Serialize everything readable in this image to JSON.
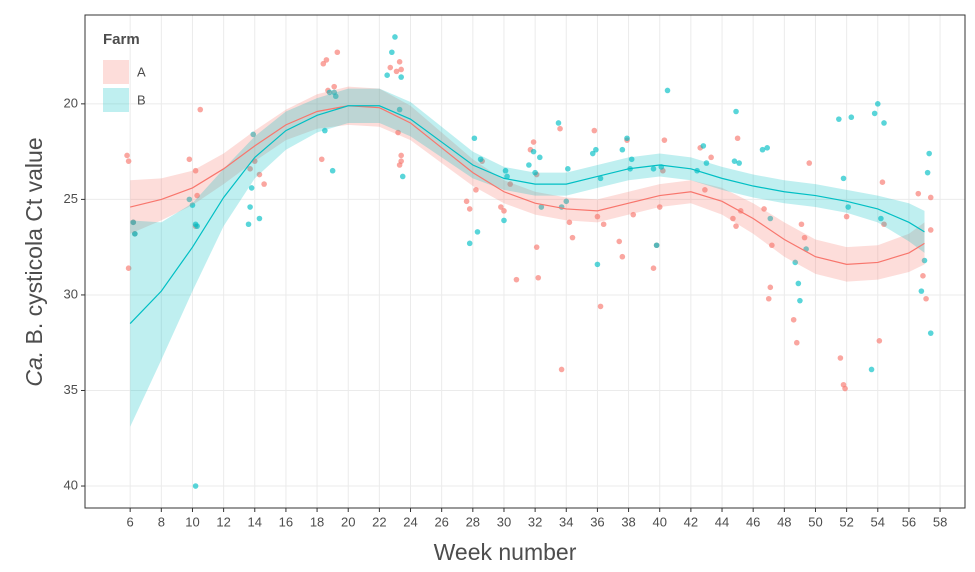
{
  "chart_data": {
    "type": "scatter",
    "xlabel": "Week number",
    "ylabel_italic": "Ca.",
    "ylabel": "B. cysticola Ct value",
    "legend_title": "Farm",
    "legend_position": "top-left",
    "grid": true,
    "y_reversed": true,
    "xlim": [
      3.1,
      59.6
    ],
    "ylim": [
      15.35,
      41.15
    ],
    "xticks": [
      6,
      8,
      10,
      12,
      14,
      16,
      18,
      20,
      22,
      24,
      26,
      28,
      30,
      32,
      34,
      36,
      38,
      40,
      42,
      44,
      46,
      48,
      50,
      52,
      54,
      56,
      58
    ],
    "yticks": [
      20,
      25,
      30,
      35,
      40
    ],
    "fit_x": [
      6,
      8,
      10,
      12,
      14,
      16,
      18,
      20,
      22,
      24,
      26,
      28,
      30,
      32,
      34,
      36,
      38,
      40,
      42,
      44,
      46,
      48,
      50,
      52,
      54,
      56,
      57
    ],
    "series": [
      {
        "name": "A",
        "color": "#f8766d",
        "x": [
          5.8,
          5.9,
          5.9,
          6.2,
          6.3,
          9.8,
          10.2,
          10.3,
          10.5,
          10.2,
          13.7,
          14,
          14.3,
          14.6,
          18.3,
          18.4,
          18.6,
          18.7,
          19.1,
          19.3,
          22.7,
          23.1,
          23.3,
          23.4,
          23.2,
          23.4,
          23.4,
          23.3,
          27.6,
          27.8,
          28.2,
          28.6,
          29.8,
          30.0,
          30.4,
          30.8,
          31.7,
          31.9,
          32.1,
          32.1,
          32.2,
          33.6,
          33.7,
          34.2,
          34.4,
          35.8,
          36.0,
          36.2,
          36.4,
          37.4,
          37.6,
          37.9,
          38.3,
          39.6,
          39.8,
          40.0,
          40.2,
          40.3,
          42.6,
          42.9,
          43.3,
          44.7,
          44.9,
          45.0,
          45.2,
          46.7,
          47.0,
          47.1,
          47.2,
          48.6,
          48.8,
          49.1,
          49.3,
          49.6,
          51.6,
          51.8,
          51.9,
          52.0,
          54.1,
          54.3,
          54.4,
          56.6,
          56.9,
          57.1,
          57.4,
          57.4
        ],
        "values": [
          22.7,
          23.0,
          28.6,
          26.2,
          26.8,
          22.9,
          23.5,
          24.8,
          20.3,
          26.4,
          23.4,
          23,
          23.7,
          24.2,
          22.9,
          17.9,
          17.7,
          19.3,
          19.1,
          17.3,
          18.1,
          18.3,
          17.8,
          18.2,
          21.5,
          22.7,
          23.0,
          23.2,
          25.1,
          25.5,
          24.5,
          23.0,
          25.4,
          25.6,
          24.2,
          29.2,
          22.4,
          22.0,
          23.7,
          27.5,
          29.1,
          21.3,
          33.9,
          26.2,
          27.0,
          21.4,
          25.9,
          30.6,
          26.3,
          27.2,
          28.0,
          21.9,
          25.8,
          28.6,
          27.4,
          25.4,
          23.5,
          21.9,
          22.3,
          24.5,
          22.8,
          26.0,
          26.4,
          21.8,
          25.6,
          25.5,
          30.2,
          29.6,
          27.4,
          31.3,
          32.5,
          26.3,
          27.0,
          23.1,
          33.3,
          34.7,
          34.9,
          25.9,
          32.4,
          24.1,
          26.3,
          24.7,
          29.0,
          30.2,
          24.9,
          26.6
        ],
        "fit": [
          25.4,
          25.0,
          24.4,
          23.4,
          22.2,
          21.1,
          20.4,
          20.1,
          20.2,
          21.0,
          22.3,
          23.6,
          24.6,
          25.2,
          25.5,
          25.6,
          25.2,
          24.8,
          24.6,
          25.1,
          26.0,
          27.1,
          28.0,
          28.4,
          28.3,
          27.8,
          27.3
        ],
        "fit_lower": [
          24.0,
          23.9,
          23.5,
          22.6,
          21.4,
          20.3,
          19.5,
          19.1,
          19.2,
          20.1,
          21.5,
          22.9,
          24.0,
          24.6,
          24.9,
          25.0,
          24.6,
          24.2,
          24.0,
          24.4,
          25.2,
          26.2,
          27.1,
          27.5,
          27.4,
          26.8,
          26.2
        ],
        "fit_upper": [
          26.8,
          26.1,
          25.3,
          24.2,
          23.0,
          21.9,
          21.3,
          21.1,
          21.2,
          21.9,
          23.1,
          24.3,
          25.2,
          25.8,
          26.1,
          26.2,
          25.8,
          25.4,
          25.2,
          25.8,
          26.8,
          28.0,
          28.9,
          29.3,
          29.2,
          28.8,
          28.4
        ]
      },
      {
        "name": "B",
        "color": "#00bfc4",
        "x": [
          6.2,
          6.3,
          9.8,
          10.0,
          10.2,
          10.3,
          10.2,
          13.6,
          13.7,
          13.8,
          13.9,
          14.3,
          18.5,
          18.8,
          19.0,
          19.1,
          19.2,
          22.5,
          22.8,
          23.0,
          23.3,
          23.5,
          23.4,
          27.8,
          28.1,
          28.3,
          28.5,
          30.0,
          30.1,
          30.2,
          31.6,
          31.9,
          32.0,
          32.3,
          32.4,
          33.5,
          33.7,
          34.0,
          34.1,
          35.7,
          35.9,
          36.0,
          36.2,
          37.6,
          37.9,
          38.1,
          38.2,
          39.6,
          39.8,
          40.1,
          40.5,
          42.4,
          42.8,
          43.0,
          44.8,
          44.9,
          45.1,
          46.6,
          46.9,
          47.1,
          48.7,
          48.9,
          49.0,
          49.4,
          51.5,
          51.8,
          52.1,
          52.3,
          53.6,
          53.8,
          54.0,
          54.4,
          54.2,
          56.8,
          57.0,
          57.2,
          57.3,
          57.4
        ],
        "values": [
          26.2,
          26.8,
          25.0,
          25.3,
          26.3,
          26.4,
          40.0,
          26.3,
          25.4,
          24.4,
          21.6,
          26.0,
          21.4,
          19.4,
          23.5,
          19.4,
          19.6,
          18.5,
          17.3,
          16.5,
          20.3,
          23.8,
          18.6,
          27.3,
          21.8,
          26.7,
          22.9,
          26.1,
          23.5,
          23.8,
          23.2,
          22.5,
          23.6,
          22.8,
          25.4,
          21.0,
          25.4,
          25.1,
          23.4,
          22.6,
          22.4,
          28.4,
          23.9,
          22.4,
          21.8,
          23.4,
          22.9,
          23.4,
          27.4,
          23.3,
          19.3,
          23.5,
          22.2,
          23.1,
          23.0,
          20.4,
          23.1,
          22.4,
          22.3,
          26.0,
          28.3,
          29.4,
          30.3,
          27.6,
          20.8,
          23.9,
          25.4,
          20.7,
          33.9,
          20.5,
          20.0,
          21.0,
          26.0,
          29.8,
          28.2,
          23.6,
          22.6,
          32.0
        ],
        "fit": [
          31.5,
          29.8,
          27.5,
          24.9,
          22.8,
          21.4,
          20.6,
          20.1,
          20.1,
          20.8,
          22.0,
          23.2,
          23.9,
          24.2,
          24.2,
          23.8,
          23.4,
          23.2,
          23.4,
          23.9,
          24.3,
          24.6,
          24.8,
          25.1,
          25.5,
          26.2,
          26.7
        ],
        "fit_lower": [
          26.1,
          26.2,
          25.2,
          23.4,
          21.7,
          20.4,
          19.7,
          19.2,
          19.2,
          19.9,
          21.2,
          22.5,
          23.3,
          23.6,
          23.6,
          23.2,
          22.8,
          22.6,
          22.8,
          23.3,
          23.7,
          24.0,
          24.2,
          24.5,
          24.8,
          25.2,
          25.6
        ],
        "fit_upper": [
          36.9,
          33.4,
          29.8,
          26.4,
          23.9,
          22.4,
          21.5,
          21.0,
          21.0,
          21.7,
          22.8,
          23.9,
          24.5,
          24.8,
          24.8,
          24.4,
          24.0,
          23.8,
          24.0,
          24.5,
          24.9,
          25.2,
          25.4,
          25.7,
          26.2,
          27.2,
          27.8
        ]
      }
    ]
  }
}
